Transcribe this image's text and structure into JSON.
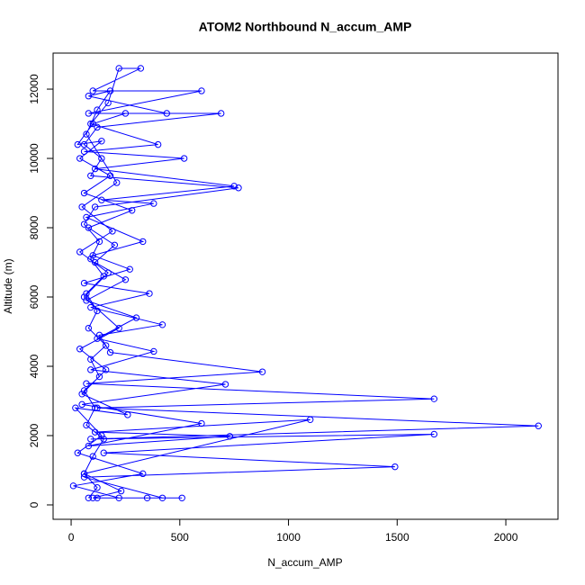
{
  "chart_data": {
    "type": "line",
    "title": "ATOM2 Northbound N_accum_AMP",
    "x_label": "N_accum_AMP",
    "y_label": "Altitude (m)",
    "color": "#0000ff",
    "markers": "open-circle",
    "xlim": [
      -83,
      2240
    ],
    "ylim": [
      -416,
      13040
    ],
    "xticks": [
      0,
      500,
      1000,
      1500,
      2000
    ],
    "yticks": [
      0,
      2000,
      4000,
      6000,
      8000,
      10000,
      12000
    ],
    "x": [
      80,
      120,
      60,
      100,
      150,
      70,
      110,
      60,
      130,
      90,
      160,
      80,
      120,
      70,
      150,
      90,
      130,
      60,
      110,
      770,
      90,
      140,
      60,
      120,
      690,
      80,
      600,
      100,
      320,
      220,
      170,
      90,
      400,
      60,
      520,
      110,
      750,
      140,
      380,
      70,
      330,
      100,
      270,
      60,
      360,
      90,
      420,
      130,
      180,
      880,
      70,
      1670,
      120,
      2150,
      90,
      1670,
      150,
      1490,
      60,
      420,
      100,
      230,
      60,
      1100,
      110,
      730,
      80,
      600,
      50,
      710,
      90,
      380,
      120,
      300,
      70,
      250,
      110,
      200,
      80,
      280,
      60,
      180,
      40,
      140,
      30,
      100,
      250,
      440,
      80,
      180,
      120,
      70,
      210,
      50,
      190,
      40,
      170,
      60,
      220,
      40,
      160,
      50,
      260,
      20,
      140,
      30,
      330,
      10,
      220,
      510,
      350,
      120
    ],
    "values": [
      200,
      500,
      900,
      1400,
      1900,
      2300,
      2800,
      3300,
      3700,
      4200,
      4600,
      5100,
      5600,
      6100,
      6600,
      7100,
      7600,
      8100,
      8600,
      9150,
      9500,
      10000,
      10400,
      10900,
      11300,
      11300,
      11950,
      11950,
      12600,
      12600,
      11600,
      11000,
      10400,
      10200,
      10000,
      9700,
      9200,
      8800,
      8700,
      8300,
      7600,
      7200,
      6800,
      6400,
      6100,
      5700,
      5200,
      4900,
      4400,
      3840,
      3500,
      3060,
      2800,
      2280,
      1900,
      2040,
      1500,
      1100,
      800,
      200,
      200,
      400,
      900,
      2460,
      2100,
      1980,
      1700,
      2350,
      2900,
      3480,
      3900,
      4430,
      4800,
      5400,
      5900,
      6500,
      7000,
      7500,
      8000,
      8500,
      9000,
      9500,
      10000,
      10500,
      10400,
      11000,
      11300,
      11300,
      11800,
      11950,
      11400,
      10700,
      9300,
      8600,
      7900,
      7300,
      6700,
      6000,
      5100,
      4500,
      3900,
      3200,
      2600,
      2800,
      2000,
      1500,
      900,
      550,
      200,
      200,
      200,
      200
    ]
  }
}
